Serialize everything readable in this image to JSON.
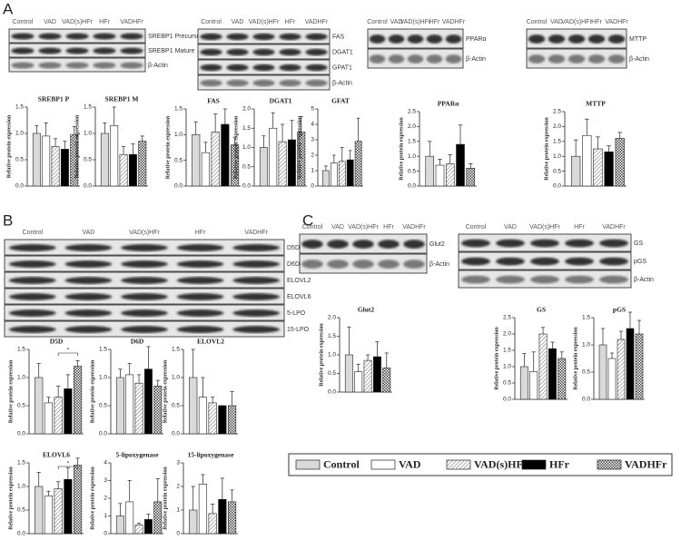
{
  "panels": [
    "A",
    "B",
    "C"
  ],
  "legend": [
    {
      "name": "Control",
      "fill": "#d9d9d9",
      "pattern": "solid"
    },
    {
      "name": "VAD",
      "fill": "#ffffff",
      "pattern": "solid"
    },
    {
      "name": "VAD(s)HFr",
      "fill": "#ffffff",
      "pattern": "hatch"
    },
    {
      "name": "HFr",
      "fill": "#000000",
      "pattern": "solid"
    },
    {
      "name": "VADHFr",
      "fill": "#ffffff",
      "pattern": "check"
    }
  ],
  "blots": [
    {
      "header": [
        "Control",
        "VAD",
        "VAD(s)HFr",
        "HFr",
        "VADHFr"
      ],
      "rows": [
        "SREBP1 Precursor",
        "SREBP1 Mature",
        "β-Actin"
      ]
    },
    {
      "header": [
        "Control",
        "VAD",
        "VAD(s)HFr",
        "HFr",
        "VADHFr"
      ],
      "rows": [
        "FAS",
        "DGAT1",
        "GPAT1",
        "β-Actin"
      ]
    },
    {
      "header": [
        "Control",
        "VAD",
        "VAD(s)HFr",
        "HFr",
        "VADHFr"
      ],
      "rows": [
        "PPARα",
        "β-Actin"
      ]
    },
    {
      "header": [
        "Control",
        "VAD",
        "VAD(s)HFr",
        "HFr",
        "VADHFr"
      ],
      "rows": [
        "MTTP",
        "β-Actin"
      ]
    },
    {
      "header": [
        "Control",
        "VAD",
        "VAD(s)HFr",
        "HFr",
        "VADHFr"
      ],
      "rows": [
        "D5D",
        "D6D",
        "ELOVL2",
        "ELOVL6",
        "5-LPO",
        "15-LPO"
      ]
    },
    {
      "header": [
        "Control",
        "VAD",
        "VAD(s)HFr",
        "HFr",
        "VADHFr"
      ],
      "rows": [
        "Glut2",
        "β-Actin"
      ]
    },
    {
      "header": [
        "Control",
        "VAD",
        "VAD(s)HFr",
        "HFr",
        "VADHFr"
      ],
      "rows": [
        "GS",
        "pGS",
        "β-Actin"
      ]
    }
  ],
  "chart_data": [
    {
      "type": "bar",
      "title": "SREBP1 P",
      "ylabel": "Relative protein expression",
      "values": [
        1.0,
        0.95,
        0.75,
        0.7,
        0.98
      ],
      "errors": [
        0.15,
        0.25,
        0.15,
        0.15,
        0.15
      ],
      "ylim": [
        0,
        1.5
      ],
      "yticks": [
        {
          "value": 0,
          "label": "0.0"
        },
        0.5,
        {
          "value": 1,
          "label": "1.0"
        },
        1.5
      ]
    },
    {
      "type": "bar",
      "title": "SREBP1 M",
      "ylabel": "Relative protein expression",
      "values": [
        1.0,
        1.15,
        0.6,
        0.6,
        0.85
      ],
      "errors": [
        0.2,
        0.35,
        0.15,
        0.2,
        0.1
      ],
      "ylim": [
        0,
        1.5
      ],
      "yticks": [
        {
          "value": 0,
          "label": "0.0"
        },
        0.5,
        {
          "value": 1,
          "label": "1.0"
        },
        1.5
      ]
    },
    {
      "type": "bar",
      "title": "FAS",
      "ylabel": "Relative protein expression",
      "values": [
        1.0,
        0.65,
        1.05,
        1.2,
        0.8
      ],
      "errors": [
        0.25,
        0.2,
        0.35,
        0.3,
        0.15
      ],
      "ylim": [
        0,
        1.5
      ],
      "yticks": [
        {
          "value": 0,
          "label": "0.0"
        },
        0.5,
        {
          "value": 1,
          "label": "1.0"
        },
        1.5
      ]
    },
    {
      "type": "bar",
      "title": "DGAT1",
      "ylabel": "Relative protein expression",
      "values": [
        1.0,
        1.5,
        1.15,
        1.2,
        1.4
      ],
      "errors": [
        0.3,
        0.4,
        0.45,
        0.5,
        0.4
      ],
      "ylim": [
        0,
        2
      ],
      "yticks": [
        {
          "value": 0,
          "label": "0.0"
        },
        0.5,
        {
          "value": 1,
          "label": "1.0"
        },
        1.5,
        {
          "value": 2,
          "label": "2.0"
        }
      ]
    },
    {
      "type": "bar",
      "title": "GFAT",
      "ylabel": "Relative protein expression",
      "values": [
        1.0,
        1.5,
        1.6,
        1.7,
        2.9
      ],
      "errors": [
        0.3,
        0.5,
        0.9,
        0.6,
        1.5
      ],
      "ylim": [
        0,
        5
      ],
      "yticks": [
        0,
        1,
        2,
        3,
        4,
        5
      ]
    },
    {
      "type": "bar",
      "title": "PPARα",
      "ylabel": "Relative protein expression",
      "values": [
        1.0,
        0.7,
        0.75,
        1.4,
        0.6
      ],
      "errors": [
        0.5,
        0.2,
        0.3,
        0.65,
        0.15
      ],
      "ylim": [
        0,
        2.5
      ],
      "yticks": [
        {
          "value": 0,
          "label": "0.0"
        },
        0.5,
        {
          "value": 1,
          "label": "1.0"
        },
        1.5,
        {
          "value": 2,
          "label": "2.0"
        },
        2.5
      ]
    },
    {
      "type": "bar",
      "title": "MTTP",
      "ylabel": "Relative protein expression",
      "values": [
        1.0,
        1.7,
        1.25,
        1.15,
        1.6
      ],
      "errors": [
        0.55,
        0.55,
        0.4,
        0.2,
        0.2
      ],
      "ylim": [
        0,
        2.5
      ],
      "yticks": [
        {
          "value": 0,
          "label": "0.0"
        },
        0.5,
        {
          "value": 1,
          "label": "1.0"
        },
        1.5,
        {
          "value": 2,
          "label": "2.0"
        },
        2.5
      ]
    },
    {
      "type": "bar",
      "title": "D5D",
      "ylabel": "Relative protein expression",
      "values": [
        1.0,
        0.55,
        0.65,
        0.8,
        1.2
      ],
      "errors": [
        0.25,
        0.1,
        0.2,
        0.25,
        0.1
      ],
      "ylim": [
        0,
        1.5
      ],
      "yticks": [
        {
          "value": 0,
          "label": "0.0"
        },
        0.5,
        {
          "value": 1,
          "label": "1.0"
        },
        1.5
      ],
      "annotation": "*"
    },
    {
      "type": "bar",
      "title": "D6D",
      "ylabel": "Relative protein expression",
      "values": [
        1.0,
        1.05,
        0.9,
        1.15,
        0.85
      ],
      "errors": [
        0.15,
        0.2,
        0.15,
        0.4,
        0.1
      ],
      "ylim": [
        0,
        1.5
      ],
      "yticks": [
        {
          "value": 0,
          "label": "0.0"
        },
        0.5,
        {
          "value": 1,
          "label": "1.0"
        },
        1.5
      ]
    },
    {
      "type": "bar",
      "title": "ELOVL2",
      "ylabel": "Relative protein expression",
      "values": [
        1.0,
        0.65,
        0.55,
        0.5,
        0.5
      ],
      "errors": [
        0.5,
        0.35,
        0.1,
        0,
        0.25
      ],
      "ylim": [
        0,
        1.5
      ],
      "yticks": [
        {
          "value": 0,
          "label": "0.0"
        },
        0.5,
        {
          "value": 1,
          "label": "1.0"
        },
        1.5
      ]
    },
    {
      "type": "bar",
      "title": "ELOVL6",
      "ylabel": "Relative protein expression",
      "values": [
        1.0,
        0.8,
        0.95,
        1.15,
        1.45
      ],
      "errors": [
        0.3,
        0.1,
        0.15,
        0.25,
        0.15
      ],
      "ylim": [
        0,
        1.5
      ],
      "yticks": [
        {
          "value": 0,
          "label": "0.0"
        },
        0.5,
        {
          "value": 1,
          "label": "1.0"
        },
        1.5
      ],
      "annotation": "*"
    },
    {
      "type": "bar",
      "title": "5-lipoxygenase",
      "ylabel": "Relative protein expression",
      "values": [
        1.0,
        1.8,
        0.5,
        0.8,
        1.8
      ],
      "errors": [
        0.7,
        1.2,
        0.1,
        0.3,
        1.3
      ],
      "ylim": [
        0,
        4
      ],
      "yticks": [
        0,
        1,
        2,
        3,
        4
      ]
    },
    {
      "type": "bar",
      "title": "15-lipoxygenase",
      "ylabel": "Relative protein expression",
      "values": [
        1.0,
        2.1,
        0.85,
        1.45,
        1.35
      ],
      "errors": [
        1.0,
        0.4,
        0.4,
        0.9,
        0.5
      ],
      "ylim": [
        0,
        3
      ],
      "yticks": [
        0,
        1,
        2,
        3
      ]
    },
    {
      "type": "bar",
      "title": "Glut2",
      "ylabel": "Relative protein expression",
      "values": [
        1.0,
        0.55,
        0.85,
        0.95,
        0.65
      ],
      "errors": [
        0.75,
        0.2,
        0.15,
        0.4,
        0.4
      ],
      "ylim": [
        0,
        2
      ],
      "yticks": [
        {
          "value": 0,
          "label": "0.0"
        },
        0.5,
        {
          "value": 1,
          "label": "1.0"
        },
        1.5,
        {
          "value": 2,
          "label": "2.0"
        }
      ]
    },
    {
      "type": "bar",
      "title": "GS",
      "ylabel": "Relative protein expression",
      "values": [
        1.0,
        0.85,
        2.0,
        1.55,
        1.25
      ],
      "errors": [
        0.4,
        0.6,
        0.2,
        0.2,
        0.2
      ],
      "ylim": [
        0,
        2.5
      ],
      "yticks": [
        {
          "value": 0,
          "label": "0.0"
        },
        0.5,
        {
          "value": 1,
          "label": "1.0"
        },
        1.5,
        {
          "value": 2,
          "label": "2.0"
        },
        2.5
      ]
    },
    {
      "type": "bar",
      "title": "pGS",
      "ylabel": "Relative protein expression",
      "values": [
        1.0,
        0.75,
        1.1,
        1.3,
        1.2
      ],
      "errors": [
        0.3,
        0.1,
        0.15,
        0.3,
        0.25
      ],
      "ylim": [
        0,
        1.5
      ],
      "yticks": [
        {
          "value": 0,
          "label": "0.0"
        },
        0.5,
        {
          "value": 1,
          "label": "1.0"
        },
        1.5
      ]
    }
  ]
}
